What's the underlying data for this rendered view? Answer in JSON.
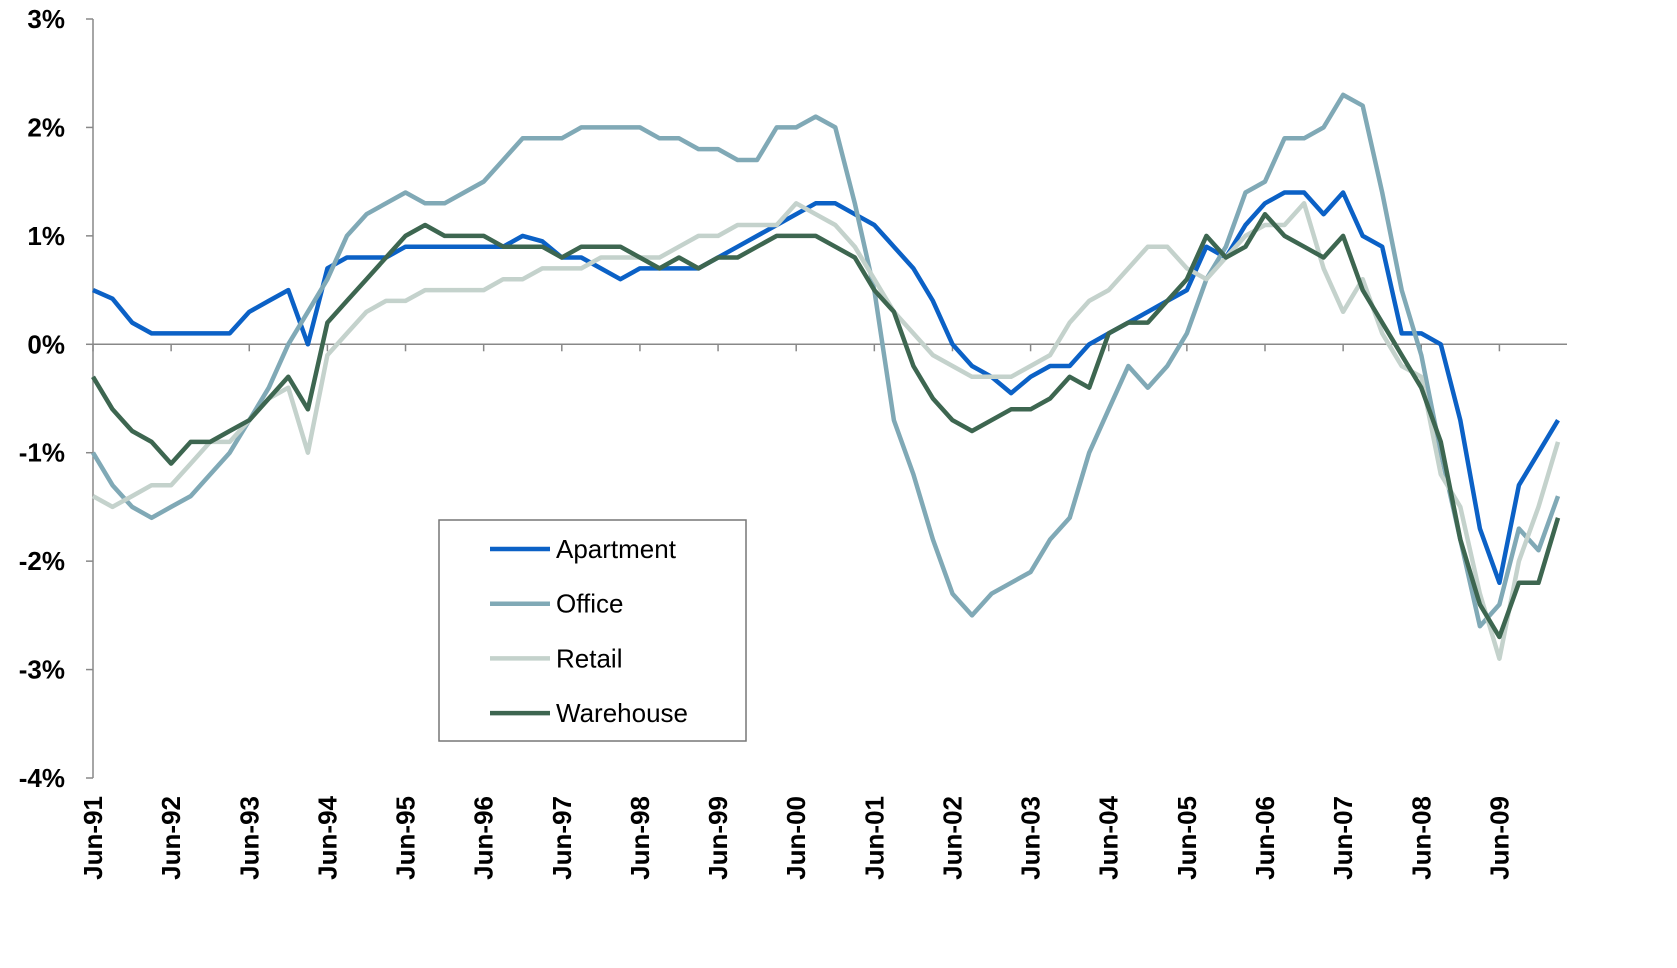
{
  "chart_data": {
    "type": "line",
    "categories": [
      "Jun-91",
      null,
      null,
      null,
      "Jun-92",
      null,
      null,
      null,
      "Jun-93",
      null,
      null,
      null,
      "Jun-94",
      null,
      null,
      null,
      "Jun-95",
      null,
      null,
      null,
      "Jun-96",
      null,
      null,
      null,
      "Jun-97",
      null,
      null,
      null,
      "Jun-98",
      null,
      null,
      null,
      "Jun-99",
      null,
      null,
      null,
      "Jun-00",
      null,
      null,
      null,
      "Jun-01",
      null,
      null,
      null,
      "Jun-02",
      null,
      null,
      null,
      "Jun-03",
      null,
      null,
      null,
      "Jun-04",
      null,
      null,
      null,
      "Jun-05",
      null,
      null,
      null,
      "Jun-06",
      null,
      null,
      null,
      "Jun-07",
      null,
      null,
      null,
      "Jun-08",
      null,
      null,
      null,
      "Jun-09",
      null,
      null,
      null
    ],
    "series": [
      {
        "name": "Apartment",
        "color": "#0b61c6",
        "values": [
          0.5,
          0.42,
          0.2,
          0.1,
          0.1,
          0.1,
          0.1,
          0.1,
          0.3,
          0.4,
          0.5,
          0.0,
          0.7,
          0.8,
          0.8,
          0.8,
          0.9,
          0.9,
          0.9,
          0.9,
          0.9,
          0.9,
          1.0,
          0.95,
          0.8,
          0.8,
          0.7,
          0.6,
          0.7,
          0.7,
          0.7,
          0.7,
          0.8,
          0.9,
          1.0,
          1.1,
          1.2,
          1.3,
          1.3,
          1.2,
          1.1,
          0.9,
          0.7,
          0.4,
          0.0,
          -0.2,
          -0.3,
          -0.45,
          -0.3,
          -0.2,
          -0.2,
          0.0,
          0.1,
          0.2,
          0.3,
          0.4,
          0.5,
          0.9,
          0.8,
          1.1,
          1.3,
          1.4,
          1.4,
          1.2,
          1.4,
          1.0,
          0.9,
          0.1,
          0.1,
          0.0,
          -0.7,
          -1.7,
          -2.2,
          -1.3,
          -1.0,
          -0.7
        ]
      },
      {
        "name": "Office",
        "color": "#80a9b6",
        "values": [
          -1.0,
          -1.3,
          -1.5,
          -1.6,
          -1.5,
          -1.4,
          -1.2,
          -1.0,
          -0.7,
          -0.4,
          0.0,
          0.3,
          0.6,
          1.0,
          1.2,
          1.3,
          1.4,
          1.3,
          1.3,
          1.4,
          1.5,
          1.7,
          1.9,
          1.9,
          1.9,
          2.0,
          2.0,
          2.0,
          2.0,
          1.9,
          1.9,
          1.8,
          1.8,
          1.7,
          1.7,
          2.0,
          2.0,
          2.1,
          2.0,
          1.3,
          0.5,
          -0.7,
          -1.2,
          -1.8,
          -2.3,
          -2.5,
          -2.3,
          -2.2,
          -2.1,
          -1.8,
          -1.6,
          -1.0,
          -0.6,
          -0.2,
          -0.4,
          -0.2,
          0.1,
          0.6,
          0.9,
          1.4,
          1.5,
          1.9,
          1.9,
          2.0,
          2.3,
          2.2,
          1.4,
          0.5,
          -0.1,
          -1.0,
          -1.8,
          -2.6,
          -2.4,
          -1.7,
          -1.9,
          -1.4
        ]
      },
      {
        "name": "Retail",
        "color": "#c4d2cc",
        "values": [
          -1.4,
          -1.5,
          -1.4,
          -1.3,
          -1.3,
          -1.1,
          -0.9,
          -0.9,
          -0.7,
          -0.5,
          -0.4,
          -1.0,
          -0.1,
          0.1,
          0.3,
          0.4,
          0.4,
          0.5,
          0.5,
          0.5,
          0.5,
          0.6,
          0.6,
          0.7,
          0.7,
          0.7,
          0.8,
          0.8,
          0.8,
          0.8,
          0.9,
          1.0,
          1.0,
          1.1,
          1.1,
          1.1,
          1.3,
          1.2,
          1.1,
          0.9,
          0.6,
          0.3,
          0.1,
          -0.1,
          -0.2,
          -0.3,
          -0.3,
          -0.3,
          -0.2,
          -0.1,
          0.2,
          0.4,
          0.5,
          0.7,
          0.9,
          0.9,
          0.7,
          0.6,
          0.8,
          1.0,
          1.1,
          1.1,
          1.3,
          0.7,
          0.3,
          0.6,
          0.1,
          -0.2,
          -0.3,
          -1.2,
          -1.5,
          -2.3,
          -2.9,
          -2.0,
          -1.5,
          -0.9
        ]
      },
      {
        "name": "Warehouse",
        "color": "#3d6650",
        "values": [
          -0.3,
          -0.6,
          -0.8,
          -0.9,
          -1.1,
          -0.9,
          -0.9,
          -0.8,
          -0.7,
          -0.5,
          -0.3,
          -0.6,
          0.2,
          0.4,
          0.6,
          0.8,
          1.0,
          1.1,
          1.0,
          1.0,
          1.0,
          0.9,
          0.9,
          0.9,
          0.8,
          0.9,
          0.9,
          0.9,
          0.8,
          0.7,
          0.8,
          0.7,
          0.8,
          0.8,
          0.9,
          1.0,
          1.0,
          1.0,
          0.9,
          0.8,
          0.5,
          0.3,
          -0.2,
          -0.5,
          -0.7,
          -0.8,
          -0.7,
          -0.6,
          -0.6,
          -0.5,
          -0.3,
          -0.4,
          0.1,
          0.2,
          0.2,
          0.4,
          0.6,
          1.0,
          0.8,
          0.9,
          1.2,
          1.0,
          0.9,
          0.8,
          1.0,
          0.5,
          0.2,
          -0.1,
          -0.4,
          -0.9,
          -1.8,
          -2.4,
          -2.7,
          -2.2,
          -2.2,
          -1.6
        ]
      }
    ],
    "ylim": [
      -4,
      3
    ],
    "yticks": [
      {
        "value": -4,
        "label": "-4%"
      },
      {
        "value": -3,
        "label": "-3%"
      },
      {
        "value": -2,
        "label": "-2%"
      },
      {
        "value": -1,
        "label": "-1%"
      },
      {
        "value": 0,
        "label": "0%"
      },
      {
        "value": 1,
        "label": "1%"
      },
      {
        "value": 2,
        "label": "2%"
      },
      {
        "value": 3,
        "label": "3%"
      }
    ]
  }
}
